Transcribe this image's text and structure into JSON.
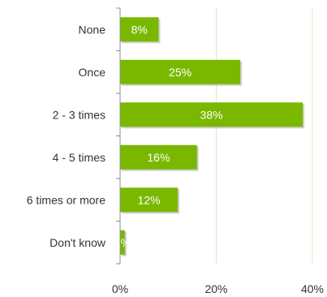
{
  "chart_data": {
    "type": "bar",
    "orientation": "horizontal",
    "categories": [
      "None",
      "Once",
      "2 - 3 times",
      "4 - 5 times",
      "6 times or more",
      "Don't know"
    ],
    "values": [
      8,
      25,
      38,
      16,
      12,
      1
    ],
    "value_labels": [
      "8%",
      "25%",
      "38%",
      "16%",
      "12%",
      "1%"
    ],
    "xlim": [
      0,
      40
    ],
    "x_ticks": [
      0,
      20,
      40
    ],
    "x_tick_labels": [
      "0%",
      "20%",
      "40%"
    ],
    "title": "",
    "xlabel": "",
    "ylabel": "",
    "grid": "vertical",
    "legend": "none",
    "colors": {
      "bar": "#7ab800",
      "bar_shadow": "#a8a8a8",
      "grid": "#d9ecc2",
      "axis": "#8c8c8c"
    }
  }
}
